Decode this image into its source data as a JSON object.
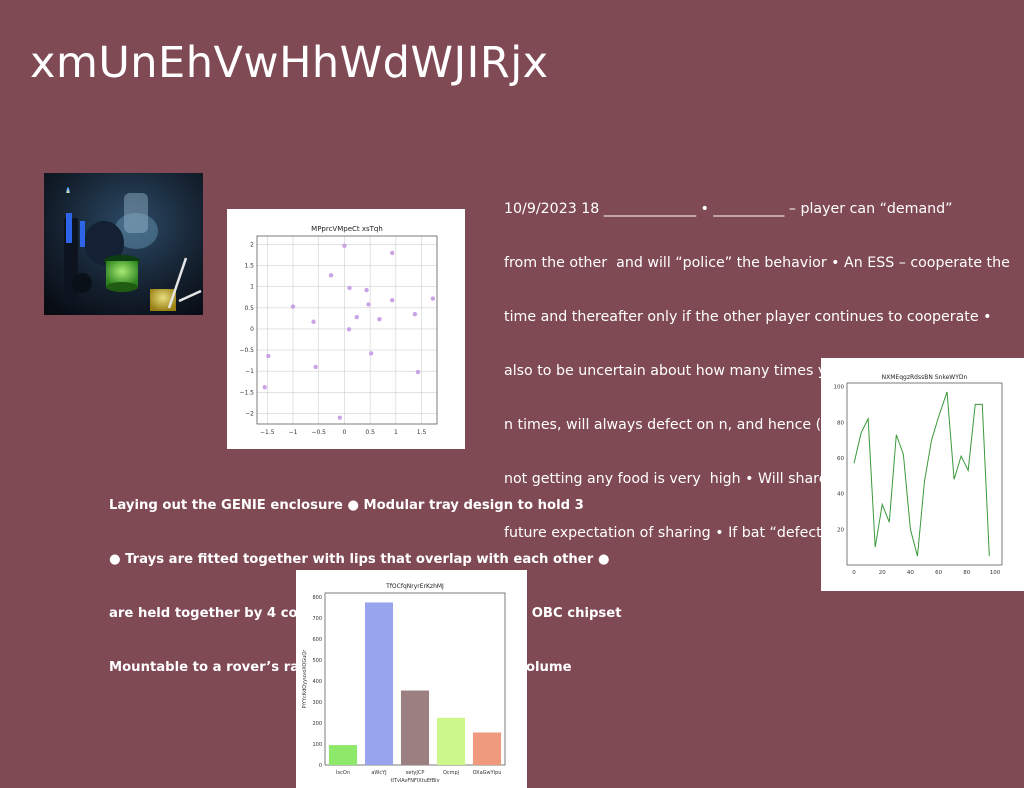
{
  "slide": {
    "title": "xmUnEhVwHhWdWJIRjx",
    "background_color": "#804a55",
    "notes_lines": [
      "10/9/2023 18 _____________ • __________ – player can “demand”",
      "from the other  and will “police” the behavior • An ESS – cooperate the",
      "time and thereafter only if the other player continues to cooperate •",
      "also to be uncertain about how many times you will play – if know will",
      "n times, will always defect on n, and hence (n-1) etc Vampire bats • Cost",
      "not getting any food is very  high • Will share (small cost to the sharer) • Is",
      "future expectation of sharing • If bat “defects” = doesn't share will not"
    ],
    "bullet_lines": [
      "Laying out the GENIE enclosure ● Modular tray design to hold 3",
      "● Trays are fitted together with lips that overlap with each other ●",
      "are held together by 4 corner pieces ● Heat sink for the OBC chipset",
      "Mountable to a rover’s radiator ● Will provide mass & volume"
    ]
  },
  "chart_data": [
    {
      "type": "scatter",
      "title": "MPprcVMpeCt xsTqh",
      "color": "#c9a3e6",
      "xlim": [
        -1.7,
        1.8
      ],
      "ylim": [
        -2.25,
        2.2
      ],
      "xticks": [
        -1.5,
        -1.0,
        -0.5,
        0.0,
        0.5,
        1.0,
        1.5
      ],
      "yticks": [
        -2.0,
        -1.5,
        -1.0,
        -0.5,
        0.0,
        0.5,
        1.0,
        1.5,
        2.0
      ],
      "grid": true,
      "points": [
        [
          0.0,
          1.97
        ],
        [
          0.93,
          1.8
        ],
        [
          -0.26,
          1.27
        ],
        [
          0.1,
          0.97
        ],
        [
          0.43,
          0.92
        ],
        [
          0.93,
          0.68
        ],
        [
          1.72,
          0.72
        ],
        [
          -1.0,
          0.53
        ],
        [
          0.47,
          0.58
        ],
        [
          1.37,
          0.35
        ],
        [
          -0.6,
          0.17
        ],
        [
          0.24,
          0.28
        ],
        [
          0.68,
          0.23
        ],
        [
          0.09,
          -0.01
        ],
        [
          -1.48,
          -0.64
        ],
        [
          0.52,
          -0.58
        ],
        [
          -0.56,
          -0.9
        ],
        [
          1.43,
          -1.02
        ],
        [
          -1.55,
          -1.38
        ],
        [
          -0.09,
          -2.1
        ]
      ]
    },
    {
      "type": "line",
      "title": "NXMEqgzRdssBN SnkeWYDn",
      "color": "#3a9a3a",
      "xlim": [
        -5,
        105
      ],
      "ylim": [
        0,
        102
      ],
      "xticks": [
        0,
        20,
        40,
        60,
        80,
        100
      ],
      "yticks": [
        20,
        40,
        60,
        80,
        100
      ],
      "grid": false,
      "x": [
        0,
        5,
        10,
        15,
        20,
        25,
        30,
        35,
        40,
        45,
        50,
        55,
        60,
        66,
        71,
        76,
        81,
        86,
        91,
        96,
        100
      ],
      "y": [
        57,
        74,
        82,
        10,
        34,
        24,
        73,
        62,
        20,
        5,
        47,
        70,
        83,
        97,
        48,
        61,
        53,
        90,
        90,
        5,
        null
      ]
    },
    {
      "type": "bar",
      "title": "TfOCfqNryrErKzhMJ",
      "xlabel": "tITvlAvFNFlXtuEfBlv",
      "ylabel": "PiYYcKdQyyuvoXOGuQr",
      "categories": [
        "IscOn",
        "aWcYJ",
        "xetyJCP",
        "Qcmpj",
        "OXaGwYlpu"
      ],
      "values": [
        95,
        775,
        355,
        225,
        155
      ],
      "colors": [
        "#8ee86a",
        "#99a4ee",
        "#9c8081",
        "#ccf78a",
        "#ef9a7c"
      ],
      "ylim": [
        0,
        820
      ],
      "yticks": [
        0,
        100,
        200,
        300,
        400,
        500,
        600,
        700,
        800
      ]
    }
  ]
}
